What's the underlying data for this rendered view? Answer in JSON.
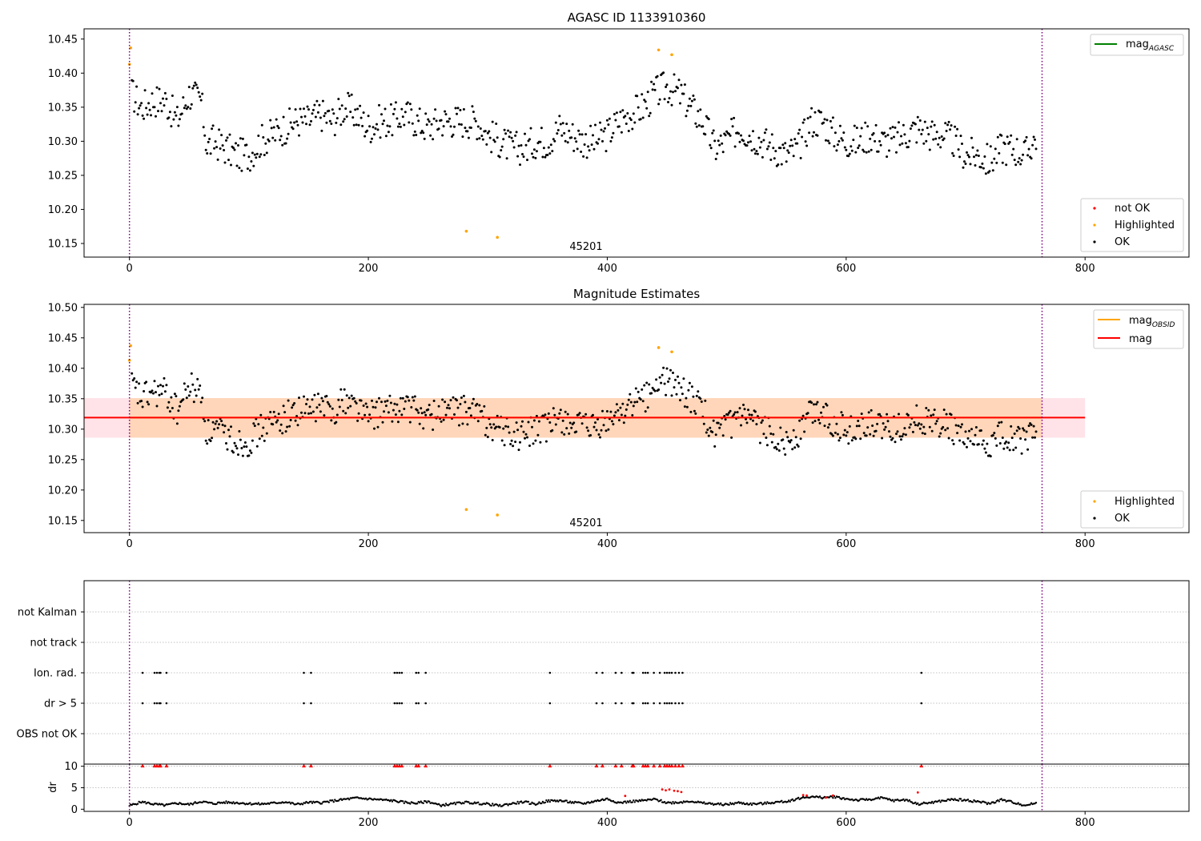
{
  "chart_data": [
    {
      "type": "scatter",
      "title": "AGASC ID 1133910360",
      "xlim": [
        -38,
        887
      ],
      "ylim": [
        10.13,
        10.465
      ],
      "xticks": [
        "0",
        "200",
        "400",
        "600",
        "800"
      ],
      "yticks": [
        "10.15",
        "10.20",
        "10.25",
        "10.30",
        "10.35",
        "10.40",
        "10.45"
      ],
      "obsid_label": "45201",
      "obs_boundaries": [
        0,
        764
      ],
      "legend_lines": [
        {
          "name": "mag",
          "sub": "AGASC",
          "color": "#008000"
        }
      ],
      "legend_points": [
        {
          "name": "not OK",
          "color": "#ff0000"
        },
        {
          "name": "Highlighted",
          "color": "#ffa500"
        },
        {
          "name": "OK",
          "color": "#000000"
        }
      ],
      "series": [
        {
          "name": "OK",
          "color": "#000000",
          "x": [
            2,
            10,
            20,
            30,
            40,
            50,
            60,
            65,
            70,
            80,
            90,
            100,
            110,
            120,
            130,
            140,
            150,
            160,
            170,
            180,
            190,
            200,
            210,
            220,
            230,
            240,
            250,
            260,
            270,
            280,
            290,
            300,
            310,
            320,
            330,
            340,
            350,
            360,
            370,
            380,
            390,
            400,
            410,
            420,
            430,
            440,
            450,
            460,
            470,
            480,
            490,
            500,
            510,
            520,
            530,
            540,
            550,
            560,
            570,
            580,
            590,
            600,
            610,
            620,
            630,
            640,
            650,
            660,
            670,
            680,
            690,
            700,
            710,
            720,
            730,
            740,
            750,
            760
          ],
          "y": [
            10.37,
            10.35,
            10.36,
            10.36,
            10.33,
            10.37,
            10.36,
            10.29,
            10.3,
            10.29,
            10.28,
            10.28,
            10.3,
            10.31,
            10.32,
            10.33,
            10.33,
            10.34,
            10.33,
            10.35,
            10.34,
            10.32,
            10.33,
            10.33,
            10.34,
            10.33,
            10.32,
            10.33,
            10.33,
            10.33,
            10.33,
            10.31,
            10.3,
            10.29,
            10.29,
            10.3,
            10.3,
            10.32,
            10.31,
            10.3,
            10.3,
            10.31,
            10.33,
            10.34,
            10.35,
            10.37,
            10.38,
            10.37,
            10.35,
            10.33,
            10.29,
            10.3,
            10.32,
            10.31,
            10.3,
            10.29,
            10.28,
            10.29,
            10.33,
            10.33,
            10.31,
            10.3,
            10.3,
            10.31,
            10.3,
            10.3,
            10.31,
            10.32,
            10.31,
            10.31,
            10.3,
            10.28,
            10.28,
            10.27,
            10.29,
            10.29,
            10.28,
            10.31
          ]
        },
        {
          "name": "Highlighted",
          "color": "#ffa500",
          "x": [
            0,
            1,
            282,
            308,
            443,
            454
          ],
          "y": [
            10.413,
            10.437,
            10.168,
            10.159,
            10.434,
            10.427
          ]
        }
      ]
    },
    {
      "type": "scatter",
      "title": "Magnitude Estimates",
      "xlim": [
        -38,
        887
      ],
      "ylim": [
        10.13,
        10.505
      ],
      "xticks": [
        "0",
        "200",
        "400",
        "600",
        "800"
      ],
      "yticks": [
        "10.15",
        "10.20",
        "10.25",
        "10.30",
        "10.35",
        "10.40",
        "10.45",
        "10.50"
      ],
      "obsid_label": "45201",
      "obs_boundaries": [
        0,
        764
      ],
      "legend_lines": [
        {
          "name": "mag",
          "sub": "OBSID",
          "color": "#ffa500"
        },
        {
          "name": "mag",
          "sub": "",
          "color": "#ff0000"
        }
      ],
      "legend_points": [
        {
          "name": "Highlighted",
          "color": "#ffa500"
        },
        {
          "name": "OK",
          "color": "#000000"
        }
      ],
      "mag": 10.319,
      "mag_band": [
        10.286,
        10.351
      ],
      "band_x": [
        -38,
        800
      ],
      "obsid_band_x": [
        0,
        764
      ],
      "series": [
        {
          "name": "OK",
          "color": "#000000",
          "x": [
            2,
            10,
            20,
            30,
            40,
            50,
            60,
            65,
            70,
            80,
            90,
            100,
            110,
            120,
            130,
            140,
            150,
            160,
            170,
            180,
            190,
            200,
            210,
            220,
            230,
            240,
            250,
            260,
            270,
            280,
            290,
            300,
            310,
            320,
            330,
            340,
            350,
            360,
            370,
            380,
            390,
            400,
            410,
            420,
            430,
            440,
            450,
            460,
            470,
            480,
            490,
            500,
            510,
            520,
            530,
            540,
            550,
            560,
            570,
            580,
            590,
            600,
            610,
            620,
            630,
            640,
            650,
            660,
            670,
            680,
            690,
            700,
            710,
            720,
            730,
            740,
            750,
            760
          ],
          "y": [
            10.37,
            10.35,
            10.36,
            10.36,
            10.33,
            10.37,
            10.36,
            10.29,
            10.3,
            10.29,
            10.28,
            10.28,
            10.3,
            10.31,
            10.32,
            10.33,
            10.33,
            10.34,
            10.33,
            10.35,
            10.34,
            10.32,
            10.33,
            10.33,
            10.34,
            10.33,
            10.32,
            10.33,
            10.33,
            10.33,
            10.33,
            10.31,
            10.3,
            10.29,
            10.29,
            10.3,
            10.3,
            10.32,
            10.31,
            10.3,
            10.3,
            10.31,
            10.33,
            10.34,
            10.35,
            10.37,
            10.38,
            10.37,
            10.35,
            10.33,
            10.29,
            10.3,
            10.32,
            10.31,
            10.3,
            10.29,
            10.28,
            10.29,
            10.33,
            10.33,
            10.31,
            10.3,
            10.3,
            10.31,
            10.3,
            10.3,
            10.31,
            10.32,
            10.31,
            10.31,
            10.3,
            10.28,
            10.28,
            10.27,
            10.29,
            10.29,
            10.28,
            10.31
          ]
        },
        {
          "name": "Highlighted",
          "color": "#ffa500",
          "x": [
            0,
            1,
            282,
            308,
            443,
            454
          ],
          "y": [
            10.413,
            10.437,
            10.168,
            10.159,
            10.434,
            10.427
          ]
        }
      ]
    },
    {
      "type": "scatter",
      "title": "",
      "xlim": [
        -38,
        887
      ],
      "categories": [
        "not Kalman",
        "not track",
        "Ion. rad.",
        "dr > 5",
        "OBS not OK"
      ],
      "obs_boundaries": [
        0,
        764
      ],
      "flags": {
        "Ion. rad.": [
          11,
          21,
          23,
          25,
          26,
          31,
          146,
          152,
          222,
          224,
          226,
          228,
          240,
          242,
          248,
          352,
          391,
          396,
          407,
          412,
          421,
          422,
          430,
          432,
          434,
          439,
          444,
          448,
          450,
          452,
          454,
          457,
          460,
          463,
          663
        ],
        "dr > 5": [
          11,
          21,
          23,
          25,
          26,
          31,
          146,
          152,
          222,
          224,
          226,
          228,
          240,
          242,
          248,
          352,
          391,
          396,
          407,
          412,
          421,
          422,
          430,
          432,
          434,
          439,
          444,
          448,
          450,
          452,
          454,
          457,
          460,
          463,
          663
        ]
      }
    },
    {
      "type": "scatter",
      "title": "",
      "xlim": [
        -38,
        887
      ],
      "ylim": [
        -0.5,
        10.5
      ],
      "xticks": [
        "0",
        "200",
        "400",
        "600",
        "800"
      ],
      "yticks": [
        "0",
        "5",
        "10"
      ],
      "ylabel": "dr",
      "obs_boundaries": [
        0,
        764
      ],
      "clip_value": 10,
      "series": [
        {
          "name": "dr",
          "color": "#000000",
          "x": [
            0,
            10,
            20,
            30,
            40,
            50,
            60,
            70,
            80,
            90,
            100,
            110,
            120,
            130,
            140,
            150,
            160,
            170,
            180,
            190,
            200,
            210,
            220,
            230,
            240,
            250,
            260,
            270,
            280,
            290,
            300,
            310,
            320,
            330,
            340,
            350,
            360,
            370,
            380,
            390,
            400,
            410,
            420,
            430,
            440,
            450,
            460,
            470,
            480,
            490,
            500,
            510,
            520,
            530,
            540,
            550,
            560,
            570,
            580,
            590,
            600,
            610,
            620,
            630,
            640,
            650,
            660,
            670,
            680,
            690,
            700,
            710,
            720,
            730,
            740,
            750,
            760
          ],
          "y": [
            0.8,
            1.7,
            1.2,
            0.9,
            1.4,
            1.1,
            1.8,
            1.3,
            1.6,
            1.5,
            1.3,
            1.2,
            1.4,
            1.7,
            1.1,
            1.6,
            1.5,
            1.9,
            2.3,
            2.6,
            2.4,
            2.2,
            2.0,
            1.6,
            1.4,
            1.8,
            0.9,
            1.2,
            1.6,
            1.4,
            1.2,
            0.8,
            1.3,
            1.7,
            1.2,
            1.9,
            2.0,
            1.6,
            1.3,
            1.9,
            2.4,
            1.5,
            1.8,
            2.0,
            2.3,
            1.5,
            1.6,
            1.9,
            1.4,
            1.2,
            1.1,
            1.5,
            1.2,
            1.3,
            1.6,
            1.8,
            2.5,
            2.9,
            2.7,
            2.9,
            2.4,
            2.1,
            2.3,
            2.6,
            2.0,
            2.2,
            1.2,
            1.5,
            1.9,
            2.3,
            2.1,
            1.8,
            1.3,
            2.2,
            1.6,
            0.9,
            1.5
          ]
        },
        {
          "name": "flagged",
          "color": "#ff0000",
          "x": [
            415,
            446,
            449,
            452,
            456,
            459,
            462,
            564,
            567,
            583,
            589,
            660
          ],
          "y": [
            3.1,
            4.6,
            4.4,
            4.6,
            4.3,
            4.2,
            4.0,
            3.3,
            3.2,
            2.7,
            3.2,
            3.9
          ]
        },
        {
          "name": "clipped",
          "color": "#ff0000",
          "x": [
            11,
            21,
            23,
            25,
            26,
            31,
            146,
            152,
            222,
            224,
            226,
            228,
            240,
            242,
            248,
            352,
            391,
            396,
            407,
            412,
            421,
            422,
            430,
            432,
            434,
            439,
            444,
            448,
            450,
            452,
            454,
            457,
            460,
            463,
            663
          ],
          "y": [
            10,
            10,
            10,
            10,
            10,
            10,
            10,
            10,
            10,
            10,
            10,
            10,
            10,
            10,
            10,
            10,
            10,
            10,
            10,
            10,
            10,
            10,
            10,
            10,
            10,
            10,
            10,
            10,
            10,
            10,
            10,
            10,
            10,
            10,
            10
          ]
        }
      ]
    }
  ]
}
